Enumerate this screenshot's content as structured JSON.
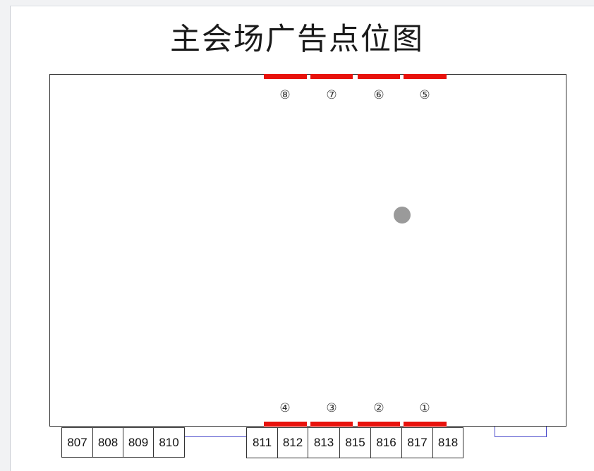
{
  "title": "主会场广告点位图",
  "ad_spots_top": [
    "⑧",
    "⑦",
    "⑥",
    "⑤"
  ],
  "ad_spots_bottom": [
    "④",
    "③",
    "②",
    "①"
  ],
  "booths_left": [
    "807",
    "808",
    "809",
    "810"
  ],
  "booths_right": [
    "811",
    "812",
    "813",
    "815",
    "816",
    "817",
    "818"
  ],
  "colors": {
    "ad_bar": "#e8120c",
    "marker": "#9a9a9a",
    "connector": "#4a4acb"
  }
}
